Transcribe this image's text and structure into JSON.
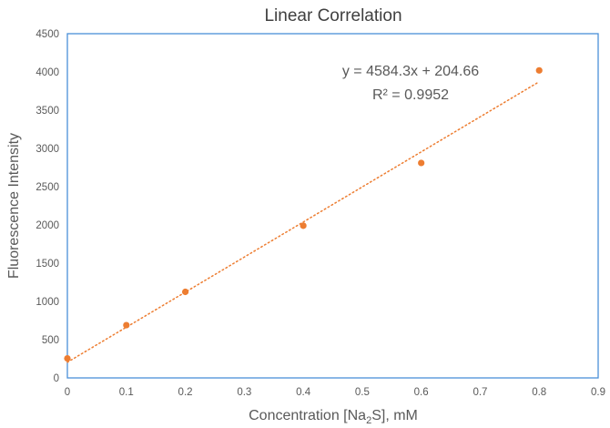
{
  "chart_data": {
    "type": "scatter",
    "title": "Linear Correlation",
    "xlabel": {
      "prefix": "Concentration [Na",
      "subscript": "2",
      "suffix": "S], mM"
    },
    "ylabel": "Fluorescence Intensity",
    "xlim": [
      0,
      0.9
    ],
    "ylim": [
      0,
      4500
    ],
    "x_ticks": [
      "0",
      "0.1",
      "0.2",
      "0.3",
      "0.4",
      "0.5",
      "0.6",
      "0.7",
      "0.8",
      "0.9"
    ],
    "y_ticks": [
      "0",
      "500",
      "1000",
      "1500",
      "2000",
      "2500",
      "3000",
      "3500",
      "4000",
      "4500"
    ],
    "grid": false,
    "marker_color": "#ED7D31",
    "frame_color": "#4A90D9",
    "series": [
      {
        "x": [
          0,
          0.1,
          0.2,
          0.4,
          0.6,
          0.8
        ],
        "y": [
          255,
          690,
          1125,
          1990,
          2810,
          4020
        ]
      }
    ],
    "trendline": {
      "type": "linear",
      "slope": 4584.3,
      "intercept": 204.66,
      "x_range": [
        0,
        0.8
      ],
      "style": "dotted"
    },
    "annotations": {
      "equation": "y = 4584.3x + 204.66",
      "r_squared": "R² = 0.9952"
    }
  }
}
